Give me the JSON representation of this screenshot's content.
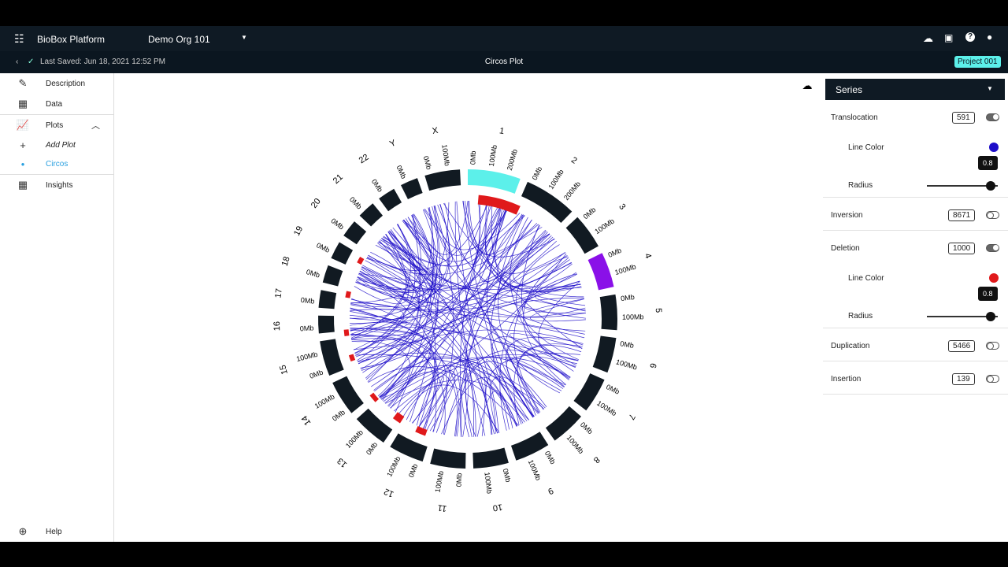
{
  "header": {
    "app_name": "BioBox Platform",
    "org": "Demo Org 101"
  },
  "subheader": {
    "last_saved": "Last Saved: Jun 18, 2021 12:52 PM",
    "title": "Circos Plot",
    "project": "Project 001"
  },
  "sidebar": {
    "items": [
      "Description",
      "Data",
      "Plots",
      "Add Plot",
      "Circos",
      "Insights"
    ],
    "help": "Help"
  },
  "circos": {
    "chromosomes": [
      {
        "name": "1",
        "ticks": [
          "0Mb",
          "100Mb",
          "200Mb"
        ],
        "color": "#5cf0ea"
      },
      {
        "name": "2",
        "ticks": [
          "0Mb",
          "100Mb",
          "200Mb"
        ],
        "color": "#111a22"
      },
      {
        "name": "3",
        "ticks": [
          "0Mb",
          "100Mb"
        ],
        "color": "#111a22"
      },
      {
        "name": "4",
        "ticks": [
          "0Mb",
          "100Mb"
        ],
        "color": "#8a10e8"
      },
      {
        "name": "5",
        "ticks": [
          "0Mb",
          "100Mb"
        ],
        "color": "#111a22"
      },
      {
        "name": "6",
        "ticks": [
          "0Mb",
          "100Mb"
        ],
        "color": "#111a22"
      },
      {
        "name": "7",
        "ticks": [
          "0Mb",
          "100Mb"
        ],
        "color": "#111a22"
      },
      {
        "name": "8",
        "ticks": [
          "0Mb",
          "100Mb"
        ],
        "color": "#111a22"
      },
      {
        "name": "9",
        "ticks": [
          "0Mb",
          "100Mb"
        ],
        "color": "#111a22"
      },
      {
        "name": "10",
        "ticks": [
          "0Mb",
          "100Mb"
        ],
        "color": "#111a22"
      },
      {
        "name": "11",
        "ticks": [
          "0Mb",
          "100Mb"
        ],
        "color": "#111a22"
      },
      {
        "name": "12",
        "ticks": [
          "0Mb",
          "100Mb"
        ],
        "color": "#111a22"
      },
      {
        "name": "13",
        "ticks": [
          "0Mb",
          "100Mb"
        ],
        "color": "#111a22"
      },
      {
        "name": "14",
        "ticks": [
          "0Mb",
          "100Mb"
        ],
        "color": "#111a22"
      },
      {
        "name": "15",
        "ticks": [
          "0Mb",
          "100Mb"
        ],
        "color": "#111a22"
      },
      {
        "name": "16",
        "ticks": [
          "0Mb"
        ],
        "color": "#111a22"
      },
      {
        "name": "17",
        "ticks": [
          "0Mb"
        ],
        "color": "#111a22"
      },
      {
        "name": "18",
        "ticks": [
          "0Mb"
        ],
        "color": "#111a22"
      },
      {
        "name": "19",
        "ticks": [
          "0Mb"
        ],
        "color": "#111a22"
      },
      {
        "name": "20",
        "ticks": [
          "0Mb"
        ],
        "color": "#111a22"
      },
      {
        "name": "21",
        "ticks": [
          "0Mb"
        ],
        "color": "#111a22"
      },
      {
        "name": "22",
        "ticks": [
          "0Mb"
        ],
        "color": "#111a22"
      },
      {
        "name": "Y",
        "ticks": [
          "0Mb"
        ],
        "color": "#111a22"
      },
      {
        "name": "X",
        "ticks": [
          "0Mb",
          "100Mb"
        ],
        "color": "#111a22"
      }
    ]
  },
  "panel": {
    "dropdown": "Series",
    "series": [
      {
        "name": "Translocation",
        "count": 591,
        "enabled": true,
        "line_color_label": "Line Color",
        "color": "#1d0dc9",
        "radius_label": "Radius",
        "radius": 0.8
      },
      {
        "name": "Inversion",
        "count": 8671,
        "enabled": false
      },
      {
        "name": "Deletion",
        "count": 1000,
        "enabled": true,
        "line_color_label": "Line Color",
        "color": "#e0191b",
        "radius_label": "Radius",
        "radius": 0.8
      },
      {
        "name": "Duplication",
        "count": 5466,
        "enabled": false
      },
      {
        "name": "Insertion",
        "count": 139,
        "enabled": false
      }
    ]
  }
}
